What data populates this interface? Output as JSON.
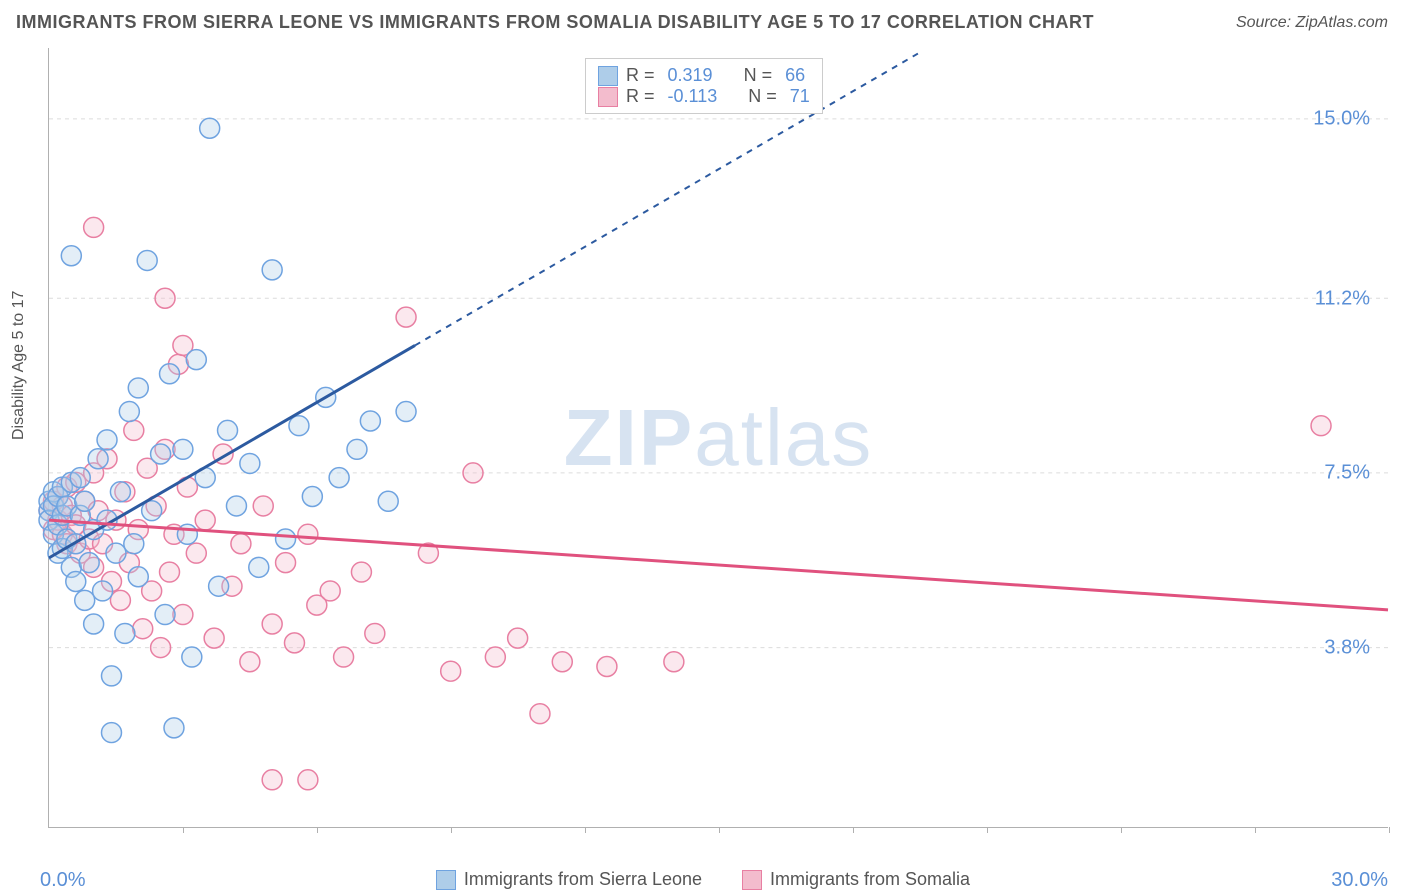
{
  "title": "IMMIGRANTS FROM SIERRA LEONE VS IMMIGRANTS FROM SOMALIA DISABILITY AGE 5 TO 17 CORRELATION CHART",
  "source": "Source: ZipAtlas.com",
  "ylabel": "Disability Age 5 to 17",
  "watermark_a": "ZIP",
  "watermark_b": "atlas",
  "chart": {
    "type": "scatter",
    "xlim": [
      0,
      30
    ],
    "ylim": [
      0,
      16.5
    ],
    "x_origin_label": "0.0%",
    "x_max_label": "30.0%",
    "x_ticks": [
      3,
      6,
      9,
      12,
      15,
      18,
      21,
      24,
      27,
      30
    ],
    "y_grid": [
      3.8,
      7.5,
      11.2,
      15.0
    ],
    "y_grid_labels": [
      "3.8%",
      "7.5%",
      "11.2%",
      "15.0%"
    ],
    "background_color": "#ffffff",
    "grid_color": "#dcdcdc",
    "axis_color": "#b0b0b0",
    "label_color": "#5a8fd6",
    "marker_radius": 10,
    "marker_stroke_width": 1.5,
    "marker_fill_opacity": 0.35,
    "series": [
      {
        "name": "Immigrants from Sierra Leone",
        "color": "#6fa3e0",
        "fill": "#aecde9",
        "r_value": "0.319",
        "n_value": "66",
        "regression": {
          "x1": 0,
          "y1": 5.7,
          "x2": 8.2,
          "y2": 10.2,
          "dash_x2": 19.5,
          "dash_y2": 16.4
        },
        "points": [
          [
            0.0,
            6.7
          ],
          [
            0.0,
            6.9
          ],
          [
            0.0,
            6.5
          ],
          [
            0.1,
            7.1
          ],
          [
            0.1,
            6.2
          ],
          [
            0.1,
            6.8
          ],
          [
            0.2,
            7.0
          ],
          [
            0.2,
            5.8
          ],
          [
            0.2,
            6.4
          ],
          [
            0.3,
            6.6
          ],
          [
            0.3,
            7.2
          ],
          [
            0.3,
            5.9
          ],
          [
            0.4,
            6.1
          ],
          [
            0.4,
            6.8
          ],
          [
            0.5,
            5.5
          ],
          [
            0.5,
            7.3
          ],
          [
            0.6,
            6.0
          ],
          [
            0.6,
            5.2
          ],
          [
            0.7,
            6.6
          ],
          [
            0.7,
            7.4
          ],
          [
            0.8,
            4.8
          ],
          [
            0.8,
            6.9
          ],
          [
            0.9,
            5.6
          ],
          [
            1.0,
            6.3
          ],
          [
            1.0,
            4.3
          ],
          [
            1.1,
            7.8
          ],
          [
            1.2,
            5.0
          ],
          [
            1.3,
            6.5
          ],
          [
            1.3,
            8.2
          ],
          [
            1.4,
            3.2
          ],
          [
            1.5,
            5.8
          ],
          [
            1.6,
            7.1
          ],
          [
            1.7,
            4.1
          ],
          [
            1.8,
            8.8
          ],
          [
            1.9,
            6.0
          ],
          [
            2.0,
            9.3
          ],
          [
            2.0,
            5.3
          ],
          [
            2.2,
            12.0
          ],
          [
            2.3,
            6.7
          ],
          [
            2.5,
            7.9
          ],
          [
            2.6,
            4.5
          ],
          [
            2.7,
            9.6
          ],
          [
            2.8,
            2.1
          ],
          [
            3.0,
            8.0
          ],
          [
            3.1,
            6.2
          ],
          [
            3.2,
            3.6
          ],
          [
            3.3,
            9.9
          ],
          [
            3.5,
            7.4
          ],
          [
            3.6,
            14.8
          ],
          [
            3.8,
            5.1
          ],
          [
            4.0,
            8.4
          ],
          [
            4.2,
            6.8
          ],
          [
            4.5,
            7.7
          ],
          [
            4.7,
            5.5
          ],
          [
            5.0,
            11.8
          ],
          [
            5.3,
            6.1
          ],
          [
            5.6,
            8.5
          ],
          [
            5.9,
            7.0
          ],
          [
            6.2,
            9.1
          ],
          [
            6.5,
            7.4
          ],
          [
            6.9,
            8.0
          ],
          [
            7.2,
            8.6
          ],
          [
            7.6,
            6.9
          ],
          [
            8.0,
            8.8
          ],
          [
            1.4,
            2.0
          ],
          [
            0.5,
            12.1
          ]
        ]
      },
      {
        "name": "Immigrants from Somalia",
        "color": "#e87fa2",
        "fill": "#f3bccd",
        "r_value": "-0.113",
        "n_value": "71",
        "regression": {
          "x1": 0,
          "y1": 6.5,
          "x2": 30,
          "y2": 4.6
        },
        "points": [
          [
            0.0,
            6.7
          ],
          [
            0.1,
            6.9
          ],
          [
            0.1,
            6.3
          ],
          [
            0.2,
            7.0
          ],
          [
            0.2,
            6.5
          ],
          [
            0.3,
            6.8
          ],
          [
            0.3,
            6.2
          ],
          [
            0.4,
            7.2
          ],
          [
            0.4,
            6.0
          ],
          [
            0.5,
            6.6
          ],
          [
            0.6,
            6.4
          ],
          [
            0.6,
            7.3
          ],
          [
            0.7,
            5.8
          ],
          [
            0.8,
            6.9
          ],
          [
            0.9,
            6.1
          ],
          [
            1.0,
            7.5
          ],
          [
            1.0,
            5.5
          ],
          [
            1.1,
            6.7
          ],
          [
            1.2,
            6.0
          ],
          [
            1.3,
            7.8
          ],
          [
            1.4,
            5.2
          ],
          [
            1.5,
            6.5
          ],
          [
            1.6,
            4.8
          ],
          [
            1.7,
            7.1
          ],
          [
            1.8,
            5.6
          ],
          [
            1.9,
            8.4
          ],
          [
            2.0,
            6.3
          ],
          [
            2.1,
            4.2
          ],
          [
            2.2,
            7.6
          ],
          [
            2.3,
            5.0
          ],
          [
            2.4,
            6.8
          ],
          [
            2.5,
            3.8
          ],
          [
            2.6,
            8.0
          ],
          [
            2.7,
            5.4
          ],
          [
            2.8,
            6.2
          ],
          [
            2.9,
            9.8
          ],
          [
            3.0,
            4.5
          ],
          [
            3.1,
            7.2
          ],
          [
            3.3,
            5.8
          ],
          [
            3.5,
            6.5
          ],
          [
            3.7,
            4.0
          ],
          [
            3.9,
            7.9
          ],
          [
            4.1,
            5.1
          ],
          [
            4.3,
            6.0
          ],
          [
            4.5,
            3.5
          ],
          [
            4.8,
            6.8
          ],
          [
            5.0,
            4.3
          ],
          [
            5.3,
            5.6
          ],
          [
            5.5,
            3.9
          ],
          [
            5.8,
            6.2
          ],
          [
            6.0,
            4.7
          ],
          [
            6.3,
            5.0
          ],
          [
            6.6,
            3.6
          ],
          [
            7.0,
            5.4
          ],
          [
            7.3,
            4.1
          ],
          [
            8.0,
            10.8
          ],
          [
            8.5,
            5.8
          ],
          [
            9.0,
            3.3
          ],
          [
            9.5,
            7.5
          ],
          [
            10.0,
            3.6
          ],
          [
            10.5,
            4.0
          ],
          [
            11.0,
            2.4
          ],
          [
            11.5,
            3.5
          ],
          [
            12.5,
            3.4
          ],
          [
            14.0,
            3.5
          ],
          [
            1.0,
            12.7
          ],
          [
            2.6,
            11.2
          ],
          [
            3.0,
            10.2
          ],
          [
            5.0,
            1.0
          ],
          [
            5.8,
            1.0
          ],
          [
            28.5,
            8.5
          ]
        ]
      }
    ]
  },
  "legend": {
    "series1_label": "Immigrants from Sierra Leone",
    "series2_label": "Immigrants from Somalia"
  },
  "stats_box": {
    "r_label": "R = ",
    "n_label": "N = "
  }
}
